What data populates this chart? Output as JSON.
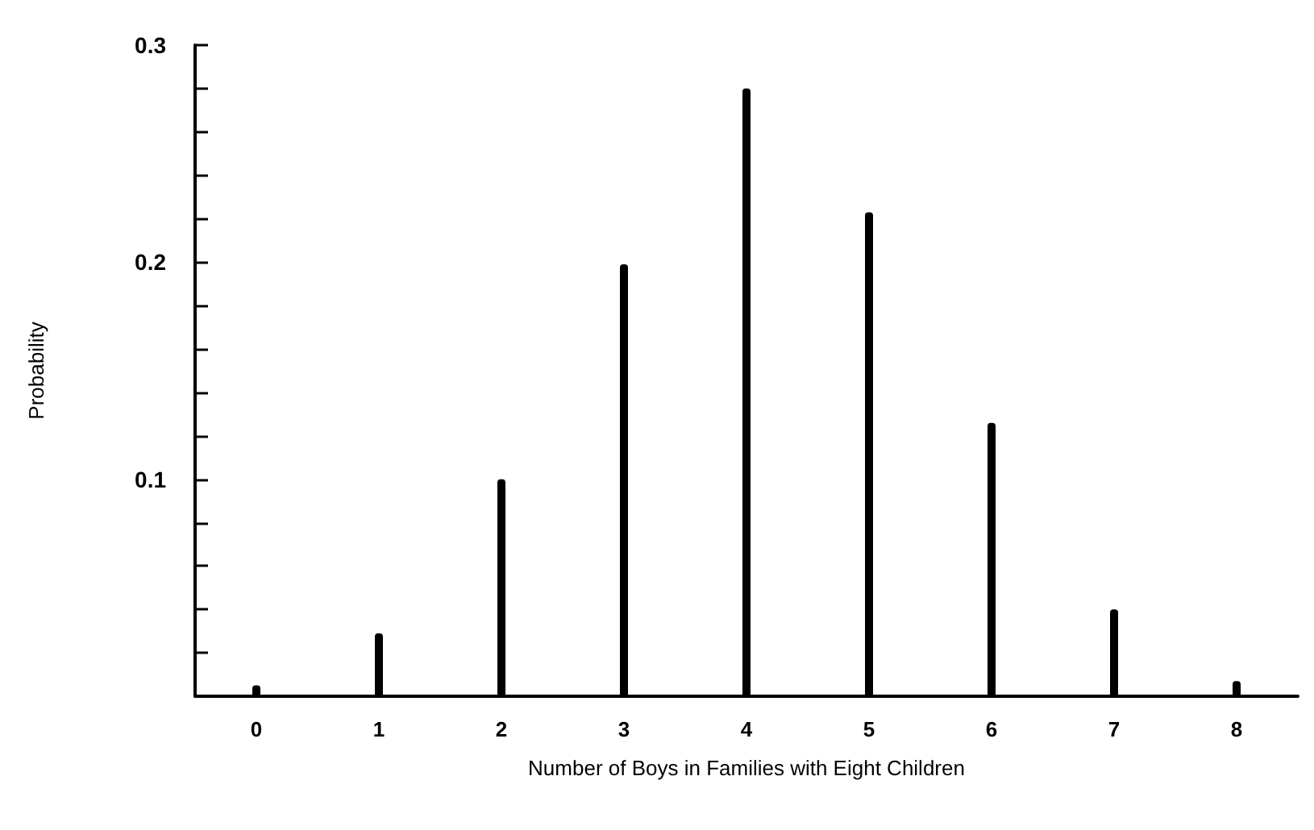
{
  "chart_data": {
    "type": "bar",
    "xlabel": "Number of Boys in Families with Eight Children",
    "ylabel": "Probability",
    "categories": [
      "0",
      "1",
      "2",
      "3",
      "4",
      "5",
      "6",
      "7",
      "8"
    ],
    "values": [
      0.005,
      0.029,
      0.1,
      0.199,
      0.28,
      0.223,
      0.126,
      0.04,
      0.007
    ],
    "color": "#000000",
    "ylim": [
      0,
      0.3
    ],
    "yticks": [
      {
        "value": 0.02,
        "label": null
      },
      {
        "value": 0.04,
        "label": null
      },
      {
        "value": 0.06,
        "label": null
      },
      {
        "value": 0.08,
        "label": null
      },
      0.1,
      {
        "value": 0.12,
        "label": null
      },
      {
        "value": 0.14,
        "label": null
      },
      {
        "value": 0.16,
        "label": null
      },
      {
        "value": 0.18,
        "label": null
      },
      0.2,
      {
        "value": 0.22,
        "label": null
      },
      {
        "value": 0.24,
        "label": null
      },
      {
        "value": 0.26,
        "label": null
      },
      {
        "value": 0.28,
        "label": null
      },
      0.3
    ],
    "grid": false
  }
}
